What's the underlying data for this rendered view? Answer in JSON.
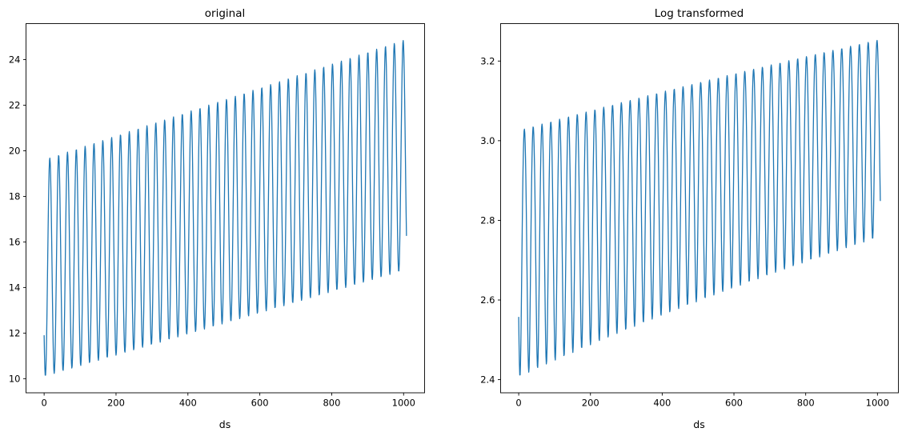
{
  "figure": {
    "background": "#ffffff"
  },
  "chart_data": [
    {
      "type": "line",
      "title": "original",
      "xlabel": "ds",
      "ylabel": "",
      "line_color": "#1f77b4",
      "grid": false,
      "legend": "none",
      "x_tick_values": [
        0,
        200,
        400,
        600,
        800,
        1000
      ],
      "x_tick_labels": [
        "0",
        "200",
        "400",
        "600",
        "800",
        "1000"
      ],
      "y_tick_values": [
        10,
        12,
        14,
        16,
        18,
        20,
        22,
        24
      ],
      "y_tick_labels": [
        "10",
        "12",
        "14",
        "16",
        "18",
        "20",
        "22",
        "24"
      ],
      "xlim": [
        -50.4,
        1058.4
      ],
      "ylim": [
        9.38,
        25.58
      ],
      "n_points": 1009,
      "x_start": 0,
      "x_step": 1,
      "transform": "identity",
      "generator": {
        "formula": "y(t) = mid(t) + amp(t) * cos(2*PI*(t - peak_t0)/period)",
        "period": 24.575,
        "peak_t0": 15.8,
        "mid_start": 14.85,
        "mid_slope_per_1000": 4.95,
        "amp_start": 4.75,
        "amp_slope_per_1000": 0.3
      },
      "key_values": {
        "first_value": 11.9,
        "min": 10.1,
        "max": 24.85,
        "first_trough": 10.1,
        "first_peak": 19.65,
        "last_trough": 14.7,
        "last_peak": 24.85,
        "last_value": 16.6,
        "approx_cycles": 41
      }
    },
    {
      "type": "line",
      "title": "Log transformed",
      "xlabel": "ds",
      "ylabel": "",
      "line_color": "#1f77b4",
      "grid": false,
      "legend": "none",
      "x_tick_values": [
        0,
        200,
        400,
        600,
        800,
        1000
      ],
      "x_tick_labels": [
        "0",
        "200",
        "400",
        "600",
        "800",
        "1000"
      ],
      "y_tick_values": [
        2.4,
        2.6,
        2.8,
        3.0,
        3.2
      ],
      "y_tick_labels": [
        "2.4",
        "2.6",
        "2.8",
        "3.0",
        "3.2"
      ],
      "xlim": [
        -50.4,
        1058.4
      ],
      "ylim": [
        2.367,
        3.294
      ],
      "n_points": 1009,
      "x_start": 0,
      "x_step": 1,
      "transform": "log1p",
      "generator": {
        "formula": "y(t) = log(1 + mid(t) + amp(t) * cos(2*PI*(t - peak_t0)/period))",
        "period": 24.575,
        "peak_t0": 15.8,
        "mid_start": 14.85,
        "mid_slope_per_1000": 4.95,
        "amp_start": 4.75,
        "amp_slope_per_1000": 0.3
      },
      "key_values": {
        "first_value": 2.55,
        "min": 2.41,
        "max": 3.25,
        "first_trough": 2.41,
        "first_peak": 3.03,
        "last_trough": 2.75,
        "last_peak": 3.25,
        "last_value": 2.87,
        "approx_cycles": 41
      }
    }
  ]
}
